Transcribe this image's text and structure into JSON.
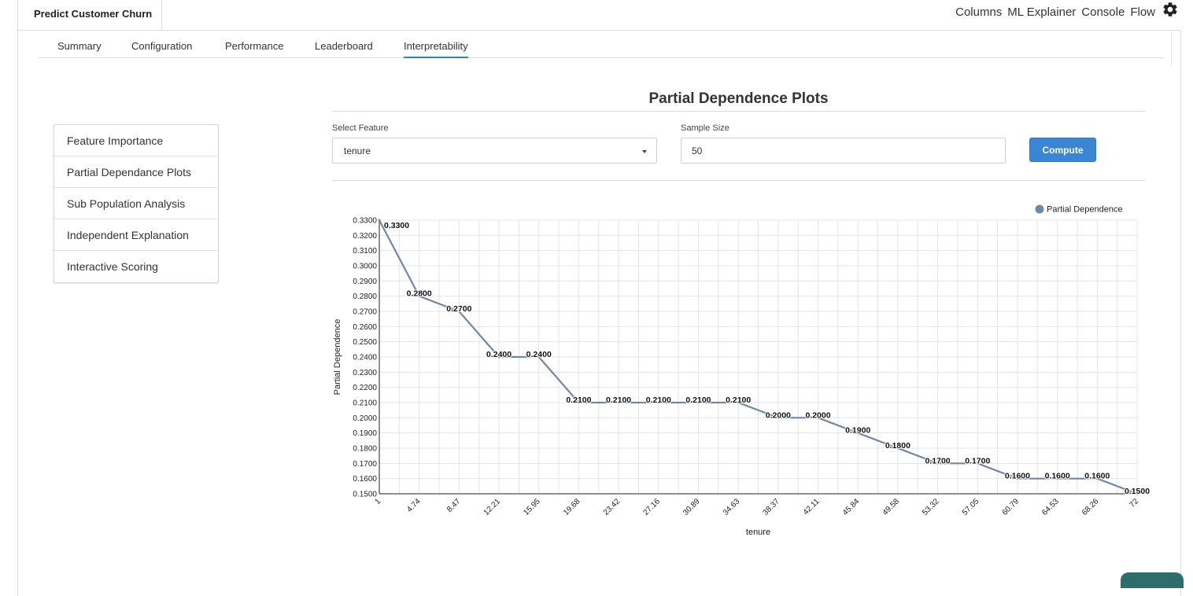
{
  "app": {
    "title": "Predict Customer Churn"
  },
  "top_nav": {
    "columns": "Columns",
    "ml_explainer": "ML Explainer",
    "console": "Console",
    "flow": "Flow"
  },
  "tabs": [
    {
      "label": "Summary"
    },
    {
      "label": "Configuration"
    },
    {
      "label": "Performance"
    },
    {
      "label": "Leaderboard"
    },
    {
      "label": "Interpretability",
      "active": true
    }
  ],
  "side_menu": [
    {
      "label": "Feature Importance"
    },
    {
      "label": "Partial Dependance Plots"
    },
    {
      "label": "Sub Population Analysis"
    },
    {
      "label": "Independent Explanation"
    },
    {
      "label": "Interactive Scoring"
    }
  ],
  "panel": {
    "title": "Partial Dependence Plots",
    "select_feature_label": "Select Feature",
    "select_feature_value": "tenure",
    "sample_size_label": "Sample Size",
    "sample_size_value": "50",
    "compute_label": "Compute"
  },
  "colors": {
    "accent": "#3a86d4",
    "line": "#6f87a8",
    "grid": "#e4e4e4"
  },
  "chart_data": {
    "type": "line",
    "xlabel": "tenure",
    "ylabel": "Partial Dependence",
    "ylim": [
      0.15,
      0.33
    ],
    "grid": true,
    "legend_position": "top-right",
    "series": [
      {
        "name": "Partial Dependence",
        "x": [
          "1",
          "4.74",
          "8.47",
          "12.21",
          "15.95",
          "19.68",
          "23.42",
          "27.16",
          "30.89",
          "34.63",
          "38.37",
          "42.11",
          "45.84",
          "49.58",
          "53.32",
          "57.05",
          "60.79",
          "64.53",
          "68.26",
          "72"
        ],
        "values": [
          0.33,
          0.28,
          0.27,
          0.24,
          0.24,
          0.21,
          0.21,
          0.21,
          0.21,
          0.21,
          0.2,
          0.2,
          0.19,
          0.18,
          0.17,
          0.17,
          0.16,
          0.16,
          0.16,
          0.15
        ],
        "labels": [
          "0.3300",
          "0.2800",
          "0.2700",
          "0.2400",
          "0.2400",
          "0.2100",
          "0.2100",
          "0.2100",
          "0.2100",
          "0.2100",
          "0.2000",
          "0.2000",
          "0.1900",
          "0.1800",
          "0.1700",
          "0.1700",
          "0.1600",
          "0.1600",
          "0.1600",
          "0.1500"
        ]
      }
    ],
    "y_ticks": [
      "0.3300",
      "0.3200",
      "0.3100",
      "0.3000",
      "0.2900",
      "0.2800",
      "0.2700",
      "0.2600",
      "0.2500",
      "0.2400",
      "0.2300",
      "0.2200",
      "0.2100",
      "0.2000",
      "0.1900",
      "0.1800",
      "0.1700",
      "0.1600",
      "0.1500"
    ]
  }
}
